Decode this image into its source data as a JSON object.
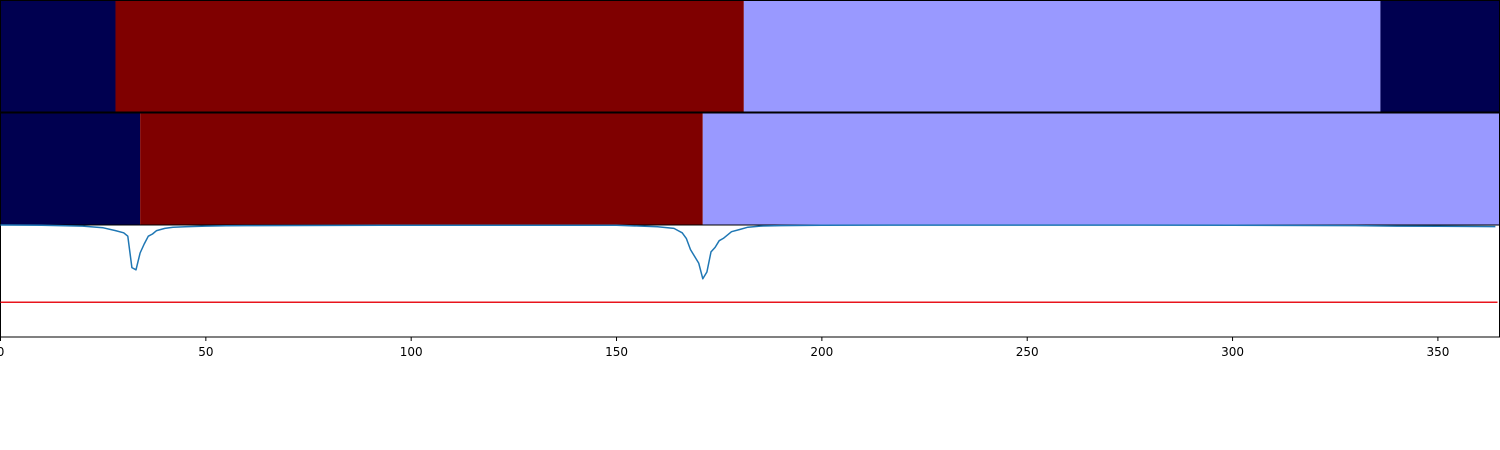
{
  "chart_data": {
    "type": "line",
    "description_panels": "two stacked segment bars above a line plot sharing one x axis",
    "xlim": [
      0,
      365
    ],
    "x_ticks": [
      0,
      50,
      100,
      150,
      200,
      250,
      300,
      350
    ],
    "x_tick_labels": [
      "0",
      "50",
      "100",
      "150",
      "200",
      "250",
      "300",
      "350"
    ],
    "colors": {
      "navy": "#000050",
      "dark_red": "#7f0000",
      "light_blue": "#9999ff",
      "line": "#1f77b4",
      "threshold": "#e8141c"
    },
    "segment_rows": [
      {
        "segments": [
          {
            "start": 0,
            "end": 28,
            "color": "navy"
          },
          {
            "start": 28,
            "end": 181,
            "color": "dark_red"
          },
          {
            "start": 181,
            "end": 336,
            "color": "light_blue"
          },
          {
            "start": 336,
            "end": 365,
            "color": "navy"
          }
        ]
      },
      {
        "segments": [
          {
            "start": 0,
            "end": 34,
            "color": "navy"
          },
          {
            "start": 34,
            "end": 171,
            "color": "dark_red"
          },
          {
            "start": 171,
            "end": 365,
            "color": "light_blue"
          }
        ]
      }
    ],
    "line_ylim": [
      0,
      1
    ],
    "threshold": 0.31,
    "series": [
      {
        "x": [
          0,
          10,
          20,
          25,
          28,
          30,
          31,
          32,
          33,
          34,
          35,
          36,
          37,
          38,
          40,
          42,
          45,
          50,
          55,
          60,
          100,
          150,
          160,
          164,
          165,
          166,
          167,
          168,
          169,
          170,
          171,
          172,
          173,
          174,
          175,
          176,
          178,
          180,
          182,
          185,
          190,
          200,
          250,
          300,
          330,
          340,
          350,
          360,
          364
        ],
        "y": [
          1.0,
          0.998,
          0.99,
          0.975,
          0.95,
          0.93,
          0.9,
          0.62,
          0.6,
          0.75,
          0.83,
          0.9,
          0.92,
          0.95,
          0.97,
          0.98,
          0.985,
          0.99,
          0.993,
          0.995,
          0.998,
          0.997,
          0.985,
          0.97,
          0.95,
          0.93,
          0.88,
          0.78,
          0.72,
          0.66,
          0.52,
          0.58,
          0.76,
          0.8,
          0.86,
          0.88,
          0.94,
          0.96,
          0.98,
          0.99,
          0.995,
          0.998,
          0.999,
          0.998,
          0.995,
          0.99,
          0.988,
          0.987,
          0.986
        ]
      }
    ]
  }
}
